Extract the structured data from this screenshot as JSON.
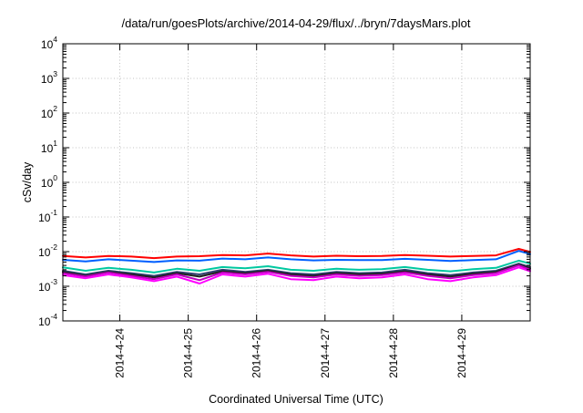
{
  "chart_data": {
    "type": "line",
    "title": "/data/run/goesPlots/archive/2014-04-29/flux/../bryn/7daysMars.plot",
    "xlabel": "Coordinated Universal Time (UTC)",
    "ylabel": "cSv/day",
    "yscale": "log",
    "ylim": [
      0.0001,
      10000
    ],
    "xlim": [
      "2014-04-23 04:00",
      "2014-04-30 00:00"
    ],
    "grid": true,
    "x_ticks": [
      "2014-4-24",
      "2014-4-25",
      "2014-4-26",
      "2014-4-27",
      "2014-4-28",
      "2014-4-29"
    ],
    "y_ticks": [
      {
        "base": "10",
        "exp": "-4",
        "value": 0.0001
      },
      {
        "base": "10",
        "exp": "-3",
        "value": 0.001
      },
      {
        "base": "10",
        "exp": "-2",
        "value": 0.01
      },
      {
        "base": "10",
        "exp": "-1",
        "value": 0.1
      },
      {
        "base": "10",
        "exp": "0",
        "value": 1
      },
      {
        "base": "10",
        "exp": "1",
        "value": 10
      },
      {
        "base": "10",
        "exp": "2",
        "value": 100
      },
      {
        "base": "10",
        "exp": "3",
        "value": 1000
      },
      {
        "base": "10",
        "exp": "4",
        "value": 10000
      }
    ],
    "x": [
      "2014-04-23 04:00",
      "2014-04-23 12:00",
      "2014-04-23 20:00",
      "2014-04-24 04:00",
      "2014-04-24 12:00",
      "2014-04-24 20:00",
      "2014-04-25 04:00",
      "2014-04-25 12:00",
      "2014-04-25 20:00",
      "2014-04-26 04:00",
      "2014-04-26 12:00",
      "2014-04-26 20:00",
      "2014-04-27 04:00",
      "2014-04-27 12:00",
      "2014-04-27 20:00",
      "2014-04-28 04:00",
      "2014-04-28 12:00",
      "2014-04-28 20:00",
      "2014-04-29 04:00",
      "2014-04-29 12:00",
      "2014-04-29 20:00",
      "2014-04-30 00:00"
    ],
    "series": [
      {
        "color": "#ff0000",
        "values": [
          0.0075,
          0.0068,
          0.0075,
          0.0072,
          0.0065,
          0.0072,
          0.0074,
          0.008,
          0.0078,
          0.0088,
          0.0078,
          0.0072,
          0.0076,
          0.0074,
          0.0075,
          0.008,
          0.0076,
          0.0072,
          0.0075,
          0.0078,
          0.012,
          0.0098
        ]
      },
      {
        "color": "#0060ff",
        "values": [
          0.0058,
          0.0052,
          0.006,
          0.0055,
          0.005,
          0.0056,
          0.0055,
          0.0063,
          0.006,
          0.0068,
          0.006,
          0.0056,
          0.0058,
          0.0057,
          0.0057,
          0.0062,
          0.0058,
          0.0054,
          0.0057,
          0.006,
          0.0105,
          0.0085
        ]
      },
      {
        "color": "#00c8a0",
        "values": [
          0.0035,
          0.0028,
          0.0034,
          0.003,
          0.0025,
          0.0032,
          0.0028,
          0.0036,
          0.0033,
          0.0038,
          0.003,
          0.0028,
          0.0032,
          0.003,
          0.0031,
          0.0036,
          0.003,
          0.0027,
          0.0031,
          0.0034,
          0.0055,
          0.0045
        ]
      },
      {
        "color": "#304070",
        "values": [
          0.0028,
          0.0022,
          0.0028,
          0.0024,
          0.002,
          0.0026,
          0.0022,
          0.003,
          0.0026,
          0.003,
          0.0024,
          0.0022,
          0.0026,
          0.0024,
          0.0025,
          0.003,
          0.0024,
          0.0021,
          0.0025,
          0.0028,
          0.0045,
          0.0036
        ]
      },
      {
        "color": "#202020",
        "values": [
          0.0026,
          0.002,
          0.0026,
          0.0022,
          0.0018,
          0.0024,
          0.0019,
          0.0027,
          0.0024,
          0.0028,
          0.0022,
          0.002,
          0.0024,
          0.0022,
          0.0023,
          0.0027,
          0.0022,
          0.0019,
          0.0023,
          0.0026,
          0.0042,
          0.0033
        ]
      },
      {
        "color": "#c000c0",
        "values": [
          0.0024,
          0.0019,
          0.0025,
          0.002,
          0.0016,
          0.0022,
          0.0015,
          0.0025,
          0.0022,
          0.0026,
          0.002,
          0.0018,
          0.0022,
          0.002,
          0.0021,
          0.0025,
          0.002,
          0.0017,
          0.0021,
          0.0024,
          0.004,
          0.003
        ]
      },
      {
        "color": "#ff00ff",
        "values": [
          0.0021,
          0.0017,
          0.0022,
          0.0018,
          0.0014,
          0.0019,
          0.0012,
          0.0022,
          0.0019,
          0.0023,
          0.0016,
          0.0015,
          0.0019,
          0.0017,
          0.0018,
          0.0022,
          0.0016,
          0.0014,
          0.0018,
          0.0021,
          0.0035,
          0.0027
        ]
      }
    ]
  }
}
